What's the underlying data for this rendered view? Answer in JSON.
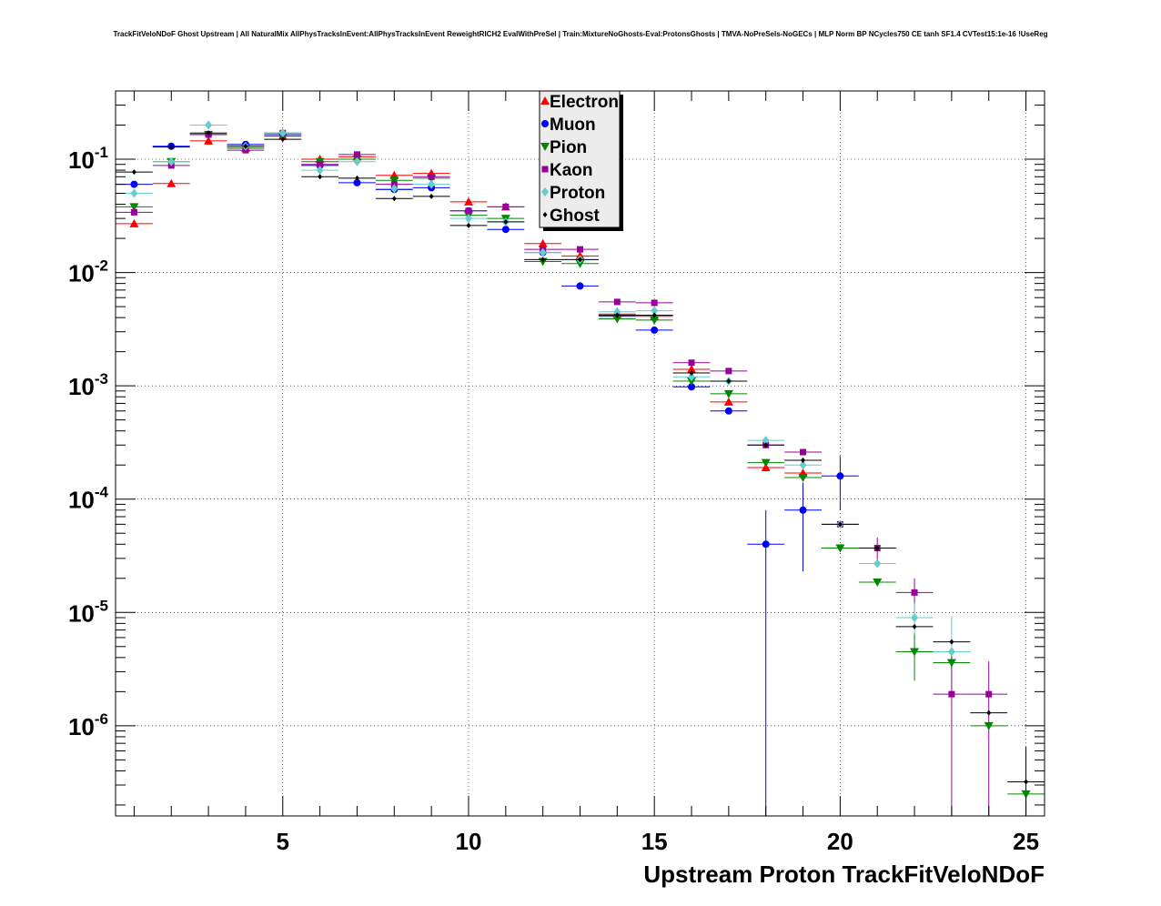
{
  "chart_data": {
    "type": "scatter",
    "title": "TrackFitVeloNDoF Ghost Upstream | All NaturalMix AllPhysTracksInEvent:AllPhysTracksInEvent ReweightRICH2 EvalWithPreSel | Train:MixtureNoGhosts-Eval:ProtonsGhosts | TMVA-NoPreSels-NoGECs | MLP Norm BP NCycles750 CE tanh SF1.4 CVTest15:1e-16 !UseReg",
    "xlabel": "Upstream Proton TrackFitVeloNDoF",
    "ylabel": "",
    "xlim": [
      0.5,
      25.5
    ],
    "ylim": [
      1.6e-07,
      0.4
    ],
    "yscale": "log",
    "grid": true,
    "legend_position": "top-center",
    "x_ticks": [
      {
        "value": 5,
        "label": "5"
      },
      {
        "value": 10,
        "label": "10"
      },
      {
        "value": 15,
        "label": "15"
      },
      {
        "value": 20,
        "label": "20"
      },
      {
        "value": 25,
        "label": "25"
      }
    ],
    "y_ticks": [
      {
        "value": 0.1,
        "base": "10",
        "exp": "-1"
      },
      {
        "value": 0.01,
        "base": "10",
        "exp": "-2"
      },
      {
        "value": 0.001,
        "base": "10",
        "exp": "-3"
      },
      {
        "value": 0.0001,
        "base": "10",
        "exp": "-4"
      },
      {
        "value": 1e-05,
        "base": "10",
        "exp": "-5"
      },
      {
        "value": 1e-06,
        "base": "10",
        "exp": "-6"
      }
    ],
    "series": [
      {
        "name": "Electron",
        "color": "#ff0000",
        "marker": "triangle-up",
        "points": [
          [
            1,
            0.027
          ],
          [
            2,
            0.061
          ],
          [
            3,
            0.145
          ],
          [
            4,
            0.125
          ],
          [
            5,
            0.16
          ],
          [
            6,
            0.1
          ],
          [
            7,
            0.105
          ],
          [
            8,
            0.072
          ],
          [
            9,
            0.075
          ],
          [
            10,
            0.042
          ],
          [
            11,
            0.038
          ],
          [
            12,
            0.018
          ],
          [
            13,
            0.014
          ],
          [
            14,
            0.0043
          ],
          [
            15,
            0.0041
          ],
          [
            16,
            0.0014
          ],
          [
            17,
            0.00072
          ],
          [
            18,
            0.00019
          ],
          [
            19,
            0.00017
          ]
        ]
      },
      {
        "name": "Muon",
        "color": "#0000ff",
        "marker": "circle",
        "points": [
          [
            1,
            0.06
          ],
          [
            2,
            0.13
          ],
          [
            3,
            0.165
          ],
          [
            4,
            0.135
          ],
          [
            5,
            0.165
          ],
          [
            6,
            0.088
          ],
          [
            7,
            0.062
          ],
          [
            8,
            0.054
          ],
          [
            9,
            0.056
          ],
          [
            10,
            0.035
          ],
          [
            11,
            0.024
          ],
          [
            12,
            0.015
          ],
          [
            13,
            0.0076
          ],
          [
            14,
            0.0041
          ],
          [
            15,
            0.0031
          ],
          [
            16,
            0.00098
          ],
          [
            17,
            0.0006
          ],
          [
            18,
            4e-05
          ],
          [
            19,
            8e-05
          ],
          [
            20,
            0.00016
          ]
        ]
      },
      {
        "name": "Pion",
        "color": "#008800",
        "marker": "triangle-down",
        "points": [
          [
            1,
            0.038
          ],
          [
            2,
            0.095
          ],
          [
            3,
            0.165
          ],
          [
            4,
            0.125
          ],
          [
            5,
            0.16
          ],
          [
            6,
            0.095
          ],
          [
            7,
            0.1
          ],
          [
            8,
            0.065
          ],
          [
            9,
            0.068
          ],
          [
            10,
            0.032
          ],
          [
            11,
            0.03
          ],
          [
            12,
            0.0125
          ],
          [
            13,
            0.012
          ],
          [
            14,
            0.0039
          ],
          [
            15,
            0.0038
          ],
          [
            16,
            0.0011
          ],
          [
            17,
            0.00085
          ],
          [
            18,
            0.00021
          ],
          [
            19,
            0.000155
          ],
          [
            20,
            3.7e-05
          ],
          [
            21,
            1.85e-05
          ],
          [
            22,
            4.5e-06
          ],
          [
            23,
            3.6e-06
          ],
          [
            24,
            1e-06
          ],
          [
            25,
            2.5e-07
          ]
        ]
      },
      {
        "name": "Kaon",
        "color": "#990099",
        "marker": "square",
        "points": [
          [
            1,
            0.034
          ],
          [
            2,
            0.088
          ],
          [
            3,
            0.165
          ],
          [
            4,
            0.12
          ],
          [
            5,
            0.17
          ],
          [
            6,
            0.09
          ],
          [
            7,
            0.11
          ],
          [
            8,
            0.06
          ],
          [
            9,
            0.07
          ],
          [
            10,
            0.035
          ],
          [
            11,
            0.038
          ],
          [
            12,
            0.016
          ],
          [
            13,
            0.016
          ],
          [
            14,
            0.0055
          ],
          [
            15,
            0.0054
          ],
          [
            16,
            0.0016
          ],
          [
            17,
            0.00135
          ],
          [
            18,
            0.0003
          ],
          [
            19,
            0.00026
          ],
          [
            20,
            6e-05
          ],
          [
            21,
            3.7e-05
          ],
          [
            22,
            1.5e-05
          ],
          [
            23,
            1.9e-06
          ],
          [
            24,
            1.9e-06
          ]
        ]
      },
      {
        "name": "Proton",
        "color": "#66cccc",
        "marker": "diamond",
        "points": [
          [
            1,
            0.05
          ],
          [
            2,
            0.095
          ],
          [
            3,
            0.2
          ],
          [
            4,
            0.13
          ],
          [
            5,
            0.17
          ],
          [
            6,
            0.08
          ],
          [
            7,
            0.095
          ],
          [
            8,
            0.055
          ],
          [
            9,
            0.06
          ],
          [
            10,
            0.03
          ],
          [
            11,
            0.028
          ],
          [
            12,
            0.015
          ],
          [
            13,
            0.013
          ],
          [
            14,
            0.0045
          ],
          [
            15,
            0.0046
          ],
          [
            16,
            0.0012
          ],
          [
            17,
            0.0011
          ],
          [
            18,
            0.00033
          ],
          [
            19,
            0.0002
          ],
          [
            20,
            6e-05
          ],
          [
            21,
            2.7e-05
          ],
          [
            22,
            9e-06
          ],
          [
            23,
            4.5e-06
          ]
        ]
      },
      {
        "name": "Ghost",
        "color": "#000000",
        "marker": "small-diamond",
        "points": [
          [
            1,
            0.077
          ],
          [
            2,
            0.128
          ],
          [
            3,
            0.17
          ],
          [
            4,
            0.13
          ],
          [
            5,
            0.15
          ],
          [
            6,
            0.07
          ],
          [
            7,
            0.068
          ],
          [
            8,
            0.045
          ],
          [
            9,
            0.047
          ],
          [
            10,
            0.026
          ],
          [
            11,
            0.028
          ],
          [
            12,
            0.013
          ],
          [
            13,
            0.013
          ],
          [
            14,
            0.0042
          ],
          [
            15,
            0.0042
          ],
          [
            16,
            0.0013
          ],
          [
            17,
            0.0011
          ],
          [
            18,
            0.0003
          ],
          [
            19,
            0.00022
          ],
          [
            20,
            6e-05
          ],
          [
            21,
            3.7e-05
          ],
          [
            22,
            7.5e-06
          ],
          [
            23,
            5.5e-06
          ],
          [
            24,
            1.3e-06
          ],
          [
            25,
            3.2e-07
          ]
        ]
      }
    ],
    "error_bars": [
      {
        "series": "Muon",
        "x": 18,
        "low": 1.6e-07,
        "high": 8e-05
      },
      {
        "series": "Muon",
        "x": 19,
        "low": 2.3e-05,
        "high": 0.00014
      },
      {
        "series": "Muon",
        "x": 20,
        "low": 8e-05,
        "high": 0.00024
      },
      {
        "series": "Kaon",
        "x": 21,
        "low": 2.8e-05,
        "high": 4.6e-05
      },
      {
        "series": "Kaon",
        "x": 22,
        "low": 9e-06,
        "high": 2e-05
      },
      {
        "series": "Proton",
        "x": 22,
        "low": 4.5e-06,
        "high": 1.2e-05
      },
      {
        "series": "Pion",
        "x": 22,
        "low": 2.5e-06,
        "high": 6.5e-06
      },
      {
        "series": "Proton",
        "x": 23,
        "low": 2.5e-06,
        "high": 9.3e-06
      },
      {
        "series": "Kaon",
        "x": 23,
        "low": 1.6e-07,
        "high": 4.5e-06
      },
      {
        "series": "Kaon",
        "x": 24,
        "low": 1.6e-07,
        "high": 3.7e-06
      },
      {
        "series": "Ghost",
        "x": 25,
        "low": 1.6e-07,
        "high": 6.5e-07
      }
    ]
  }
}
